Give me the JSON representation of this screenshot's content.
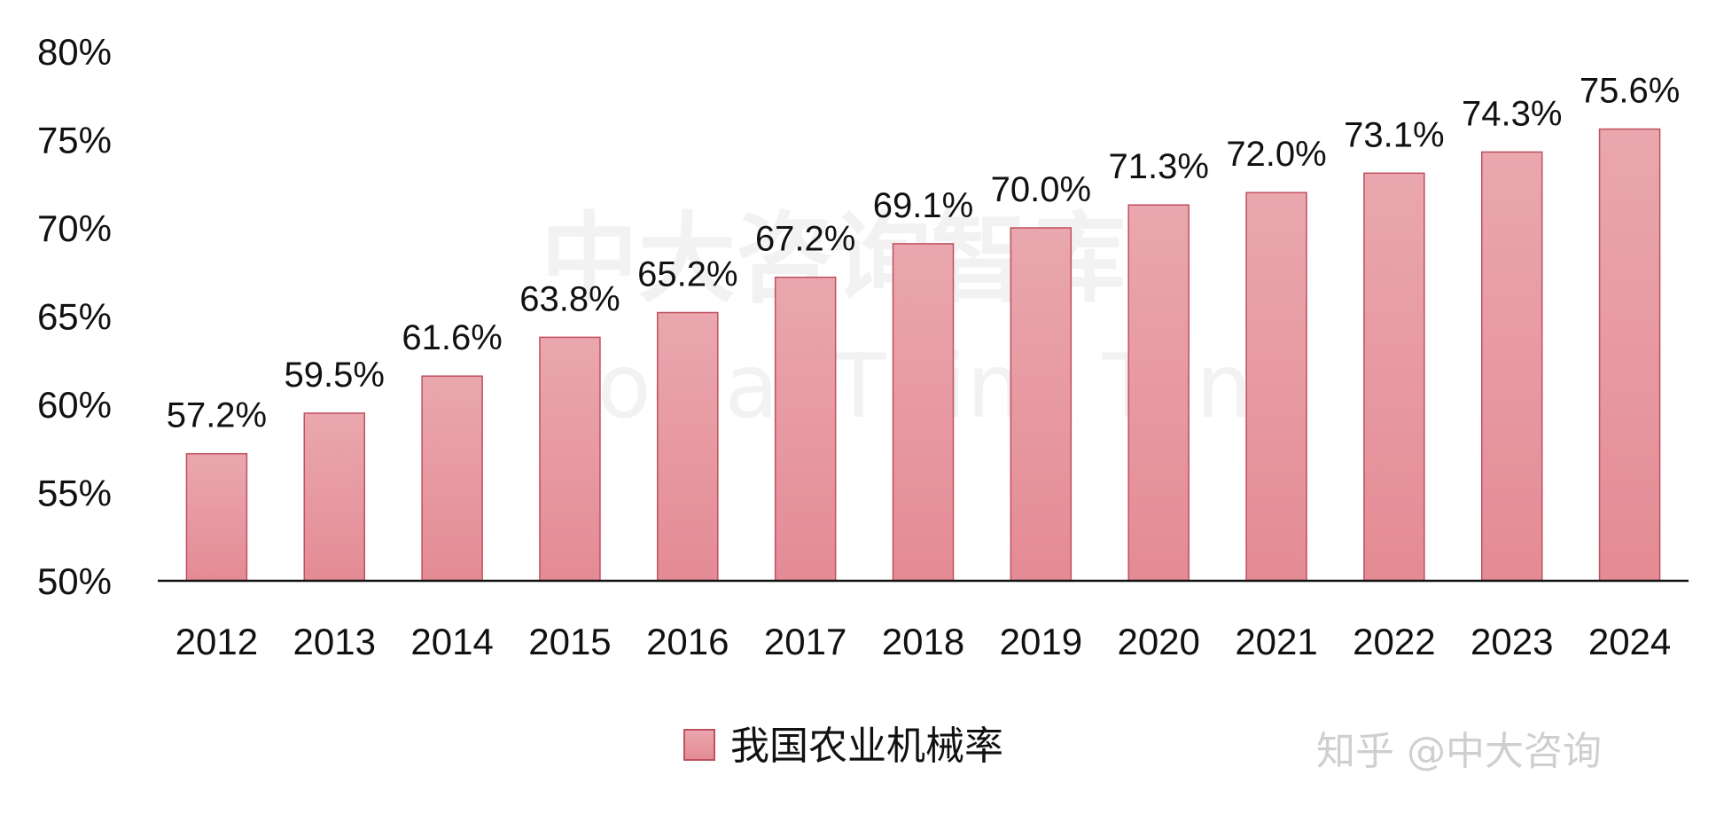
{
  "chart_data": {
    "type": "bar",
    "categories": [
      "2012",
      "2013",
      "2014",
      "2015",
      "2016",
      "2017",
      "2018",
      "2019",
      "2020",
      "2021",
      "2022",
      "2023",
      "2024"
    ],
    "series": [
      {
        "name": "我国农业机械率",
        "values": [
          57.2,
          59.5,
          61.6,
          63.8,
          65.2,
          67.2,
          69.1,
          70.0,
          71.3,
          72.0,
          73.1,
          74.3,
          75.6
        ],
        "value_labels": [
          "57.2%",
          "59.5%",
          "61.6%",
          "63.8%",
          "65.2%",
          "67.2%",
          "69.1%",
          "70.0%",
          "71.3%",
          "72.0%",
          "73.1%",
          "74.3%",
          "75.6%"
        ]
      }
    ],
    "ylim": [
      50,
      80
    ],
    "yticks": [
      "50%",
      "55%",
      "60%",
      "65%",
      "70%",
      "75%",
      "80%"
    ],
    "ytick_values": [
      50,
      55,
      60,
      65,
      70,
      75,
      80
    ],
    "grid": false,
    "legend_position": "bottom-center",
    "bar_color_top": "#eaa7ae",
    "bar_color_bottom": "#e48b95",
    "bar_stroke": "#c0505f"
  },
  "watermark": {
    "brand_text": "中大咨询智库",
    "brand_subtext": "Social Think Tank"
  },
  "credit": "知乎 @中大咨询"
}
